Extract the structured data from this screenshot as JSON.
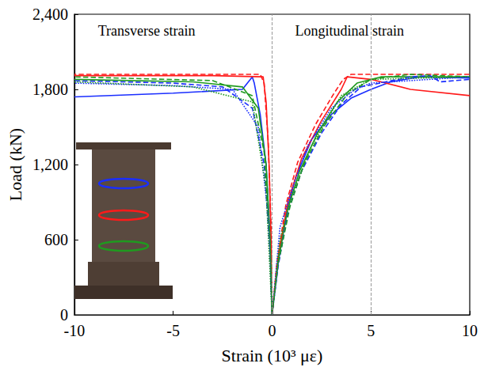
{
  "chart_data": {
    "type": "line",
    "x_label": "Strain (10³ με)",
    "y_label": "Load (kN)",
    "annotations": [
      "Transverse strain",
      "Longitudinal strain"
    ],
    "xlim": [
      -10,
      10
    ],
    "xticks": [
      -10,
      -5,
      0,
      5,
      10
    ],
    "ylim": [
      0,
      2400
    ],
    "yticks": [
      0,
      600,
      1200,
      1800,
      2400
    ],
    "vlines": [
      0,
      5
    ],
    "grid": false,
    "series": [
      {
        "color": "#1a2eff",
        "line_style": "solid",
        "x": [
          0,
          0.3,
          0.7,
          1.2,
          2,
          3,
          4,
          5,
          6,
          7.5,
          10
        ],
        "values": [
          0,
          400,
          800,
          1100,
          1400,
          1600,
          1730,
          1800,
          1860,
          1900,
          1890
        ]
      },
      {
        "color": "#ff1a1a",
        "line_style": "solid",
        "x": [
          0,
          0.3,
          0.8,
          1.5,
          2.5,
          3.5,
          3.8,
          5,
          7,
          10
        ],
        "values": [
          0,
          450,
          900,
          1250,
          1550,
          1800,
          1900,
          1880,
          1800,
          1750
        ]
      },
      {
        "color": "#1f9a1f",
        "line_style": "solid",
        "x": [
          0,
          0.3,
          0.8,
          1.4,
          2.3,
          3.3,
          4.3,
          5.5,
          10
        ],
        "values": [
          0,
          420,
          850,
          1150,
          1450,
          1700,
          1850,
          1900,
          1900
        ]
      },
      {
        "color": "#1a2eff",
        "line_style": "dashed",
        "x": [
          0,
          0.3,
          0.8,
          1.5,
          2.5,
          3.5,
          4.5,
          7,
          8,
          8.5,
          10
        ],
        "values": [
          0,
          380,
          820,
          1150,
          1450,
          1680,
          1820,
          1900,
          1910,
          1860,
          1880
        ]
      },
      {
        "color": "#ff1a1a",
        "line_style": "dashed",
        "x": [
          0,
          0.25,
          0.7,
          1.3,
          2.2,
          3.1,
          3.6,
          4,
          10
        ],
        "values": [
          0,
          420,
          880,
          1220,
          1520,
          1760,
          1880,
          1920,
          1920
        ]
      },
      {
        "color": "#1f9a1f",
        "line_style": "dashed",
        "x": [
          0,
          0.3,
          0.9,
          1.6,
          2.6,
          3.8,
          5,
          7,
          10
        ],
        "values": [
          0,
          400,
          860,
          1200,
          1500,
          1760,
          1880,
          1920,
          1900
        ]
      },
      {
        "color": "#1a2eff",
        "line_style": "dotted",
        "x": [
          0,
          0.4,
          1,
          1.8,
          3,
          4.2,
          5,
          10
        ],
        "values": [
          0,
          700,
          1000,
          1350,
          1650,
          1800,
          1850,
          1900
        ]
      },
      {
        "color": "#1f9a1f",
        "line_style": "dotted",
        "x": [
          0,
          0.4,
          1,
          2,
          3.5,
          5,
          10
        ],
        "values": [
          0,
          600,
          950,
          1350,
          1750,
          1880,
          1900
        ]
      },
      {
        "color": "#1a2eff",
        "line_style": "solid",
        "x": [
          0,
          -0.1,
          -0.3,
          -0.6,
          -0.9,
          -1,
          -1.5,
          -5,
          -10
        ],
        "values": [
          0,
          600,
          1200,
          1600,
          1850,
          1900,
          1800,
          1770,
          1740
        ]
      },
      {
        "color": "#1a2eff",
        "line_style": "dashed",
        "x": [
          0,
          -0.1,
          -0.4,
          -1,
          -2.5,
          -5,
          -10
        ],
        "values": [
          0,
          500,
          1200,
          1650,
          1820,
          1850,
          1870
        ]
      },
      {
        "color": "#ff1a1a",
        "line_style": "solid",
        "x": [
          0,
          -0.05,
          -0.15,
          -0.3,
          -0.45,
          -3,
          -10
        ],
        "values": [
          0,
          600,
          1200,
          1700,
          1900,
          1910,
          1910
        ]
      },
      {
        "color": "#ff1a1a",
        "line_style": "dashed",
        "x": [
          0,
          -0.05,
          -0.2,
          -0.4,
          -0.6,
          -10
        ],
        "values": [
          0,
          700,
          1400,
          1850,
          1920,
          1920
        ]
      },
      {
        "color": "#1f9a1f",
        "line_style": "solid",
        "x": [
          0,
          -0.1,
          -0.3,
          -0.7,
          -1.5,
          -4,
          -10
        ],
        "values": [
          0,
          600,
          1200,
          1650,
          1820,
          1860,
          1880
        ]
      },
      {
        "color": "#1f9a1f",
        "line_style": "dashed",
        "x": [
          0,
          -0.1,
          -0.4,
          -1,
          -3,
          -10
        ],
        "values": [
          0,
          550,
          1300,
          1750,
          1870,
          1900
        ]
      },
      {
        "color": "#1a2eff",
        "line_style": "dotted",
        "x": [
          0,
          -0.2,
          -0.7,
          -2,
          -5,
          -10
        ],
        "values": [
          0,
          800,
          1500,
          1800,
          1830,
          1850
        ]
      },
      {
        "color": "#1f9a1f",
        "line_style": "dotted",
        "x": [
          0,
          -0.3,
          -1,
          -4,
          -10
        ],
        "values": [
          0,
          1000,
          1700,
          1820,
          1860
        ]
      }
    ]
  }
}
